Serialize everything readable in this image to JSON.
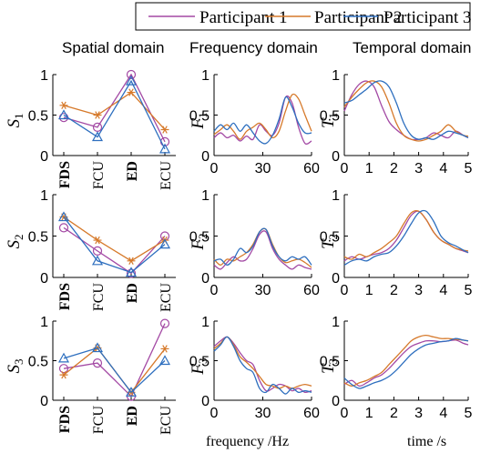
{
  "legend": {
    "entries": [
      {
        "name": "Participant 1",
        "color": "#a349a4",
        "marker": "circle"
      },
      {
        "name": "Participant 2",
        "color": "#d6792a",
        "marker": "star"
      },
      {
        "name": "Participant 3",
        "color": "#2e6fbf",
        "marker": "triangle"
      }
    ]
  },
  "columns": {
    "spatial": "Spatial domain",
    "frequency": "Frequency domain",
    "temporal": "Temporal domain"
  },
  "axis_labels": {
    "rows": [
      {
        "S": "S",
        "F": "F",
        "T": "T",
        "sub": "1"
      },
      {
        "S": "S",
        "F": "F",
        "T": "T",
        "sub": "2"
      },
      {
        "S": "S",
        "F": "F",
        "T": "T",
        "sub": "3"
      }
    ],
    "frequency_xlabel": "frequency /Hz",
    "time_xlabel": "time /s"
  },
  "chart_data": [
    {
      "type": "line",
      "domain": "spatial",
      "row": 1,
      "ylabel": "S1",
      "categories": [
        "FDS",
        "FCU",
        "ED",
        "ECU"
      ],
      "ylim": [
        0,
        1
      ],
      "yticks": [
        "0",
        "0.5",
        "1"
      ],
      "series": [
        {
          "name": "Participant 1",
          "values": [
            0.47,
            0.35,
            1.0,
            0.17
          ]
        },
        {
          "name": "Participant 2",
          "values": [
            0.62,
            0.5,
            0.78,
            0.32
          ]
        },
        {
          "name": "Participant 3",
          "values": [
            0.5,
            0.23,
            0.92,
            0.08
          ]
        }
      ]
    },
    {
      "type": "line",
      "domain": "frequency",
      "row": 1,
      "ylabel": "F1",
      "xlim": [
        0,
        60
      ],
      "xticks": [
        "0",
        "30",
        "60"
      ],
      "ylim": [
        0,
        1
      ],
      "yticks": [
        "0",
        "0.5",
        "1"
      ],
      "series": [
        {
          "name": "Participant 1",
          "x": [
            0,
            4,
            8,
            12,
            16,
            20,
            24,
            28,
            32,
            36,
            40,
            44,
            48,
            52,
            56,
            60
          ],
          "y": [
            0.22,
            0.28,
            0.22,
            0.25,
            0.18,
            0.24,
            0.2,
            0.38,
            0.3,
            0.25,
            0.4,
            0.72,
            0.65,
            0.35,
            0.15,
            0.18
          ]
        },
        {
          "name": "Participant 2",
          "x": [
            0,
            4,
            8,
            12,
            16,
            20,
            24,
            28,
            32,
            36,
            40,
            44,
            48,
            52,
            56,
            60
          ],
          "y": [
            0.26,
            0.32,
            0.38,
            0.3,
            0.2,
            0.3,
            0.35,
            0.4,
            0.32,
            0.22,
            0.3,
            0.55,
            0.75,
            0.7,
            0.5,
            0.3
          ]
        },
        {
          "name": "Participant 3",
          "x": [
            0,
            4,
            8,
            12,
            16,
            20,
            24,
            28,
            32,
            36,
            40,
            44,
            48,
            52,
            56,
            60
          ],
          "y": [
            0.3,
            0.38,
            0.32,
            0.4,
            0.3,
            0.38,
            0.28,
            0.18,
            0.15,
            0.25,
            0.45,
            0.72,
            0.6,
            0.4,
            0.28,
            0.28
          ]
        }
      ]
    },
    {
      "type": "line",
      "domain": "temporal",
      "row": 1,
      "ylabel": "T1",
      "xlim": [
        0,
        5
      ],
      "xticks": [
        "0",
        "1",
        "2",
        "3",
        "4",
        "5"
      ],
      "ylim": [
        0,
        1
      ],
      "yticks": [
        "0",
        "0.5",
        "1"
      ],
      "series": [
        {
          "name": "Participant 1",
          "x": [
            0,
            0.3,
            0.6,
            0.9,
            1.2,
            1.5,
            1.8,
            2.1,
            2.4,
            2.7,
            3.0,
            3.3,
            3.6,
            3.9,
            4.2,
            4.5,
            4.8,
            5.0
          ],
          "y": [
            0.55,
            0.75,
            0.88,
            0.92,
            0.85,
            0.62,
            0.42,
            0.32,
            0.25,
            0.2,
            0.2,
            0.22,
            0.28,
            0.25,
            0.22,
            0.3,
            0.25,
            0.22
          ]
        },
        {
          "name": "Participant 2",
          "x": [
            0,
            0.3,
            0.6,
            0.9,
            1.2,
            1.5,
            1.8,
            2.1,
            2.4,
            2.7,
            3.0,
            3.3,
            3.6,
            3.9,
            4.2,
            4.5,
            4.8,
            5.0
          ],
          "y": [
            0.6,
            0.72,
            0.82,
            0.9,
            0.92,
            0.85,
            0.65,
            0.4,
            0.25,
            0.2,
            0.18,
            0.2,
            0.25,
            0.3,
            0.38,
            0.3,
            0.25,
            0.24
          ]
        },
        {
          "name": "Participant 3",
          "x": [
            0,
            0.3,
            0.6,
            0.9,
            1.2,
            1.5,
            1.8,
            2.1,
            2.4,
            2.7,
            3.0,
            3.3,
            3.6,
            3.9,
            4.2,
            4.5,
            4.8,
            5.0
          ],
          "y": [
            0.65,
            0.68,
            0.75,
            0.82,
            0.9,
            0.92,
            0.85,
            0.65,
            0.4,
            0.25,
            0.2,
            0.22,
            0.2,
            0.25,
            0.3,
            0.28,
            0.25,
            0.22
          ]
        }
      ]
    },
    {
      "type": "line",
      "domain": "spatial",
      "row": 2,
      "ylabel": "S2",
      "categories": [
        "FDS",
        "FCU",
        "ED",
        "ECU"
      ],
      "ylim": [
        0,
        1
      ],
      "yticks": [
        "0",
        "0.5",
        "1"
      ],
      "series": [
        {
          "name": "Participant 1",
          "values": [
            0.6,
            0.32,
            0.05,
            0.5
          ]
        },
        {
          "name": "Participant 2",
          "values": [
            0.73,
            0.45,
            0.2,
            0.45
          ]
        },
        {
          "name": "Participant 3",
          "values": [
            0.73,
            0.2,
            0.06,
            0.4
          ]
        }
      ]
    },
    {
      "type": "line",
      "domain": "frequency",
      "row": 2,
      "ylabel": "F2",
      "xlim": [
        0,
        60
      ],
      "xticks": [
        "0",
        "30",
        "60"
      ],
      "ylim": [
        0,
        1
      ],
      "yticks": [
        "0",
        "0.5",
        "1"
      ],
      "series": [
        {
          "name": "Participant 1",
          "x": [
            0,
            4,
            8,
            12,
            16,
            20,
            24,
            28,
            32,
            36,
            40,
            44,
            48,
            52,
            56,
            60
          ],
          "y": [
            0.15,
            0.1,
            0.18,
            0.25,
            0.2,
            0.22,
            0.35,
            0.52,
            0.55,
            0.35,
            0.22,
            0.15,
            0.1,
            0.15,
            0.12,
            0.1
          ]
        },
        {
          "name": "Participant 2",
          "x": [
            0,
            4,
            8,
            12,
            16,
            20,
            24,
            28,
            32,
            36,
            40,
            44,
            48,
            52,
            56,
            60
          ],
          "y": [
            0.22,
            0.15,
            0.22,
            0.2,
            0.25,
            0.3,
            0.4,
            0.55,
            0.58,
            0.4,
            0.25,
            0.18,
            0.2,
            0.22,
            0.18,
            0.12
          ]
        },
        {
          "name": "Participant 3",
          "x": [
            0,
            4,
            8,
            12,
            16,
            20,
            24,
            28,
            32,
            36,
            40,
            44,
            48,
            52,
            56,
            60
          ],
          "y": [
            0.2,
            0.22,
            0.15,
            0.22,
            0.35,
            0.3,
            0.38,
            0.55,
            0.58,
            0.38,
            0.25,
            0.2,
            0.25,
            0.22,
            0.25,
            0.15
          ]
        }
      ]
    },
    {
      "type": "line",
      "domain": "temporal",
      "row": 2,
      "ylabel": "T2",
      "xlim": [
        0,
        5
      ],
      "xticks": [
        "0",
        "1",
        "2",
        "3",
        "4",
        "5"
      ],
      "ylim": [
        0,
        1
      ],
      "yticks": [
        "0",
        "0.5",
        "1"
      ],
      "series": [
        {
          "name": "Participant 1",
          "x": [
            0,
            0.3,
            0.6,
            0.9,
            1.2,
            1.5,
            1.8,
            2.1,
            2.4,
            2.7,
            3.0,
            3.3,
            3.6,
            3.9,
            4.2,
            4.5,
            4.8,
            5.0
          ],
          "y": [
            0.2,
            0.25,
            0.22,
            0.25,
            0.28,
            0.3,
            0.35,
            0.45,
            0.6,
            0.75,
            0.8,
            0.7,
            0.55,
            0.45,
            0.4,
            0.35,
            0.32,
            0.3
          ]
        },
        {
          "name": "Participant 2",
          "x": [
            0,
            0.3,
            0.6,
            0.9,
            1.2,
            1.5,
            1.8,
            2.1,
            2.4,
            2.7,
            3.0,
            3.3,
            3.6,
            3.9,
            4.2,
            4.5,
            4.8,
            5.0
          ],
          "y": [
            0.25,
            0.22,
            0.28,
            0.25,
            0.3,
            0.35,
            0.42,
            0.5,
            0.65,
            0.78,
            0.8,
            0.7,
            0.55,
            0.45,
            0.4,
            0.35,
            0.33,
            0.32
          ]
        },
        {
          "name": "Participant 3",
          "x": [
            0,
            0.3,
            0.6,
            0.9,
            1.2,
            1.5,
            1.8,
            2.1,
            2.4,
            2.7,
            3.0,
            3.3,
            3.6,
            3.9,
            4.2,
            4.5,
            4.8,
            5.0
          ],
          "y": [
            0.15,
            0.2,
            0.22,
            0.2,
            0.25,
            0.28,
            0.3,
            0.38,
            0.5,
            0.65,
            0.78,
            0.8,
            0.68,
            0.5,
            0.42,
            0.38,
            0.33,
            0.3
          ]
        }
      ]
    },
    {
      "type": "line",
      "domain": "spatial",
      "row": 3,
      "ylabel": "S3",
      "categories": [
        "FDS",
        "FCU",
        "ED",
        "ECU"
      ],
      "ylim": [
        0,
        1
      ],
      "yticks": [
        "0",
        "0.5",
        "1"
      ],
      "series": [
        {
          "name": "Participant 1",
          "values": [
            0.4,
            0.47,
            0.05,
            0.97
          ]
        },
        {
          "name": "Participant 2",
          "values": [
            0.32,
            0.66,
            0.1,
            0.65
          ]
        },
        {
          "name": "Participant 3",
          "values": [
            0.53,
            0.66,
            0.1,
            0.5
          ]
        }
      ]
    },
    {
      "type": "line",
      "domain": "frequency",
      "row": 3,
      "ylabel": "F3",
      "xlim": [
        0,
        60
      ],
      "xticks": [
        "0",
        "30",
        "60"
      ],
      "ylim": [
        0,
        1
      ],
      "yticks": [
        "0",
        "0.5",
        "1"
      ],
      "series": [
        {
          "name": "Participant 1",
          "x": [
            0,
            4,
            8,
            12,
            16,
            20,
            24,
            28,
            32,
            36,
            40,
            44,
            48,
            52,
            56,
            60
          ],
          "y": [
            0.68,
            0.75,
            0.8,
            0.72,
            0.6,
            0.5,
            0.45,
            0.25,
            0.12,
            0.15,
            0.2,
            0.18,
            0.12,
            0.15,
            0.1,
            0.12
          ]
        },
        {
          "name": "Participant 2",
          "x": [
            0,
            4,
            8,
            12,
            16,
            20,
            24,
            28,
            32,
            36,
            40,
            44,
            48,
            52,
            56,
            60
          ],
          "y": [
            0.65,
            0.72,
            0.8,
            0.7,
            0.55,
            0.48,
            0.4,
            0.3,
            0.2,
            0.18,
            0.15,
            0.18,
            0.15,
            0.18,
            0.2,
            0.18
          ]
        },
        {
          "name": "Participant 3",
          "x": [
            0,
            4,
            8,
            12,
            16,
            20,
            24,
            28,
            32,
            36,
            40,
            44,
            48,
            52,
            56,
            60
          ],
          "y": [
            0.62,
            0.7,
            0.8,
            0.68,
            0.5,
            0.4,
            0.35,
            0.15,
            0.1,
            0.2,
            0.15,
            0.08,
            0.15,
            0.1,
            0.12,
            0.1
          ]
        }
      ]
    },
    {
      "type": "line",
      "domain": "temporal",
      "row": 3,
      "ylabel": "T3",
      "xlim": [
        0,
        5
      ],
      "xticks": [
        "0",
        "1",
        "2",
        "3",
        "4",
        "5"
      ],
      "ylim": [
        0,
        1
      ],
      "yticks": [
        "0",
        "0.5",
        "1"
      ],
      "series": [
        {
          "name": "Participant 1",
          "x": [
            0,
            0.3,
            0.6,
            0.9,
            1.2,
            1.5,
            1.8,
            2.1,
            2.4,
            2.7,
            3.0,
            3.3,
            3.6,
            3.9,
            4.2,
            4.5,
            4.8,
            5.0
          ],
          "y": [
            0.2,
            0.25,
            0.18,
            0.22,
            0.28,
            0.32,
            0.4,
            0.5,
            0.6,
            0.68,
            0.72,
            0.75,
            0.75,
            0.74,
            0.75,
            0.76,
            0.72,
            0.7
          ]
        },
        {
          "name": "Participant 2",
          "x": [
            0,
            0.3,
            0.6,
            0.9,
            1.2,
            1.5,
            1.8,
            2.1,
            2.4,
            2.7,
            3.0,
            3.3,
            3.6,
            3.9,
            4.2,
            4.5,
            4.8,
            5.0
          ],
          "y": [
            0.22,
            0.18,
            0.22,
            0.25,
            0.3,
            0.35,
            0.45,
            0.55,
            0.65,
            0.75,
            0.8,
            0.82,
            0.8,
            0.78,
            0.78,
            0.77,
            0.76,
            0.75
          ]
        },
        {
          "name": "Participant 3",
          "x": [
            0,
            0.3,
            0.6,
            0.9,
            1.2,
            1.5,
            1.8,
            2.1,
            2.4,
            2.7,
            3.0,
            3.3,
            3.6,
            3.9,
            4.2,
            4.5,
            4.8,
            5.0
          ],
          "y": [
            0.28,
            0.2,
            0.15,
            0.18,
            0.22,
            0.25,
            0.3,
            0.38,
            0.48,
            0.58,
            0.65,
            0.7,
            0.72,
            0.74,
            0.75,
            0.78,
            0.76,
            0.75
          ]
        }
      ]
    }
  ]
}
